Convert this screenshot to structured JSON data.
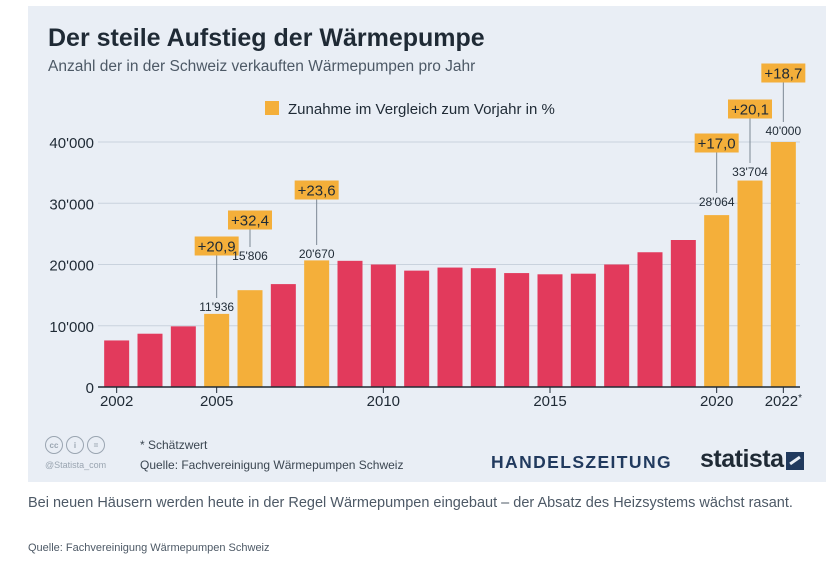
{
  "title": "Der steile Aufstieg der Wärmepumpe",
  "subtitle": "Anzahl der in der Schweiz verkauften Wärmepumpen pro Jahr",
  "legend": {
    "label": "Zunahme im Vergleich zum Vorjahr in %"
  },
  "footer": {
    "note": "* Schätzwert",
    "source": "Quelle: Fachvereinigung Wärmepumpen Schweiz",
    "credit": "@Statista_com",
    "brand_publisher": "HANDELSZEITUNG",
    "brand_statista": "statista"
  },
  "caption": "Bei neuen Häusern werden heute in der Regel Wärmepumpen eingebaut – der Absatz des Heizsystems wächst rasant.",
  "caption_source": "Quelle: Fachvereinigung Wärmepumpen Schweiz",
  "colors": {
    "red": "#e23a5c",
    "orange": "#f4af3a",
    "background": "#e9eef5",
    "text": "#1f2a35"
  },
  "chart_data": {
    "type": "bar",
    "x": [
      2002,
      2003,
      2004,
      2005,
      2006,
      2007,
      2008,
      2009,
      2010,
      2011,
      2012,
      2013,
      2014,
      2015,
      2016,
      2017,
      2018,
      2019,
      2020,
      2021,
      2022
    ],
    "values": [
      7600,
      8700,
      9900,
      11936,
      15806,
      16800,
      20670,
      20600,
      20000,
      19000,
      19500,
      19400,
      18600,
      18400,
      18500,
      20000,
      22000,
      24000,
      28064,
      33704,
      40000
    ],
    "highlighted": [
      false,
      false,
      false,
      true,
      true,
      false,
      true,
      false,
      false,
      false,
      false,
      false,
      false,
      false,
      false,
      false,
      false,
      false,
      true,
      true,
      true
    ],
    "value_labels": [
      "",
      "",
      "",
      "11'936",
      "15'806",
      "",
      "20'670",
      "",
      "",
      "",
      "",
      "",
      "",
      "",
      "",
      "",
      "",
      "",
      "28'064",
      "33'704",
      "40'000"
    ],
    "change_labels": [
      "",
      "",
      "",
      "+20,9",
      "+32,4",
      "",
      "+23,6",
      "",
      "",
      "",
      "",
      "",
      "",
      "",
      "",
      "",
      "",
      "",
      "+17,0",
      "+20,1",
      "+18,7"
    ],
    "x_tick_labels": [
      {
        "year": 2002,
        "label": "2002"
      },
      {
        "year": 2005,
        "label": "2005"
      },
      {
        "year": 2010,
        "label": "2010"
      },
      {
        "year": 2015,
        "label": "2015"
      },
      {
        "year": 2020,
        "label": "2020"
      },
      {
        "year": 2022,
        "label": "2022*"
      }
    ],
    "y_ticks": [
      0,
      10000,
      20000,
      30000,
      40000
    ],
    "y_tick_labels": [
      "0",
      "10'000",
      "20'000",
      "30'000",
      "40'000"
    ],
    "ylim": [
      0,
      40000
    ],
    "xlabel": "",
    "ylabel": "",
    "grid": true
  }
}
